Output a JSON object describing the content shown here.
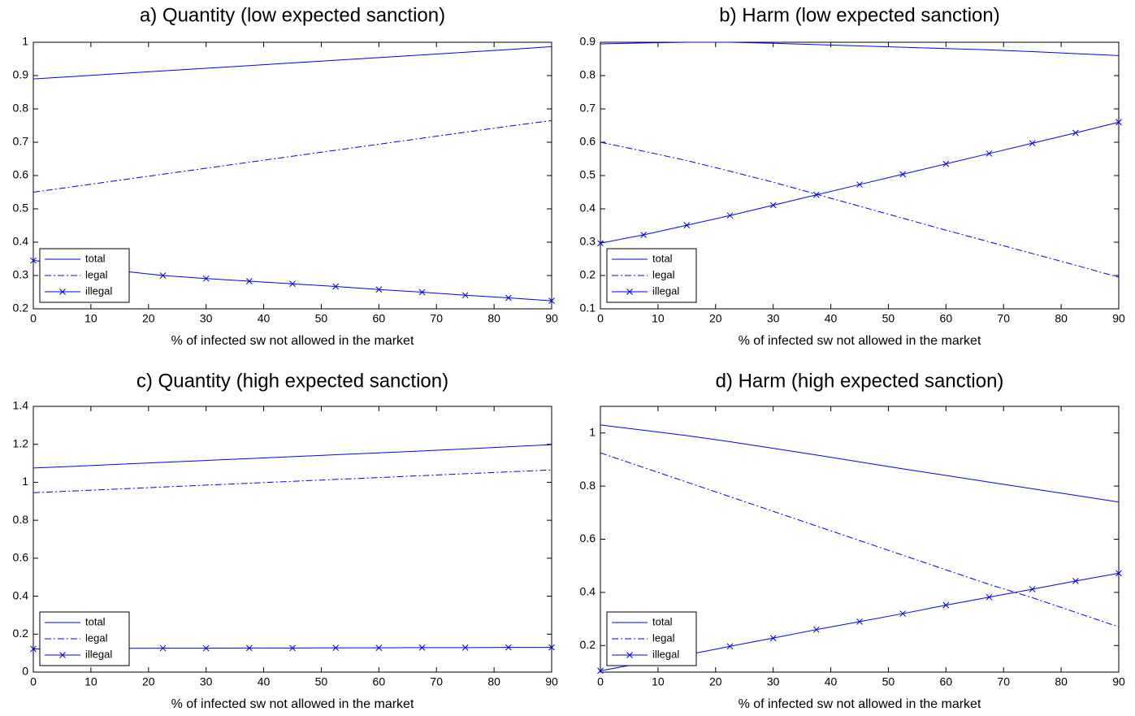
{
  "chart_data": [
    {
      "type": "line",
      "title": "a) Quantity (low expected sanction)",
      "x_label": "% of infected sw not allowed in the market",
      "x": [
        0,
        7.5,
        15,
        22.5,
        30,
        37.5,
        45,
        52.5,
        60,
        67.5,
        75,
        82.5,
        90
      ],
      "xlim": [
        0,
        90
      ],
      "xticks": [
        0,
        10,
        20,
        30,
        40,
        50,
        60,
        70,
        80,
        90
      ],
      "ylim": [
        0.2,
        1
      ],
      "yticks": [
        0.2,
        0.3,
        0.4,
        0.5,
        0.6,
        0.7,
        0.8,
        0.9,
        1
      ],
      "legend": "lower left",
      "series": [
        {
          "name": "total",
          "color": "#0000ff",
          "style": "solid",
          "values": [
            0.89,
            0.898,
            0.906,
            0.914,
            0.922,
            0.93,
            0.938,
            0.946,
            0.954,
            0.962,
            0.97,
            0.978,
            0.987
          ]
        },
        {
          "name": "legal",
          "color": "#0000ff",
          "style": "dashdot",
          "values": [
            0.55,
            0.568,
            0.586,
            0.604,
            0.622,
            0.64,
            0.658,
            0.676,
            0.694,
            0.712,
            0.73,
            0.748,
            0.765
          ]
        },
        {
          "name": "illegal",
          "color": "#0000ff",
          "style": "solid",
          "marker": "x",
          "values": [
            0.345,
            0.33,
            0.314,
            0.3,
            0.291,
            0.283,
            0.275,
            0.267,
            0.258,
            0.25,
            0.241,
            0.233,
            0.224
          ]
        }
      ]
    },
    {
      "type": "line",
      "title": "b) Harm (low expected sanction)",
      "x_label": "% of infected sw not allowed in the market",
      "x": [
        0,
        7.5,
        15,
        22.5,
        30,
        37.5,
        45,
        52.5,
        60,
        67.5,
        75,
        82.5,
        90
      ],
      "xlim": [
        0,
        90
      ],
      "xticks": [
        0,
        10,
        20,
        30,
        40,
        50,
        60,
        70,
        80,
        90
      ],
      "ylim": [
        0.1,
        0.9
      ],
      "yticks": [
        0.1,
        0.2,
        0.3,
        0.4,
        0.5,
        0.6,
        0.7,
        0.8,
        0.9
      ],
      "legend": "lower left",
      "series": [
        {
          "name": "total",
          "color": "#0000ff",
          "style": "solid",
          "values": [
            0.895,
            0.898,
            0.9,
            0.9,
            0.897,
            0.893,
            0.889,
            0.885,
            0.881,
            0.877,
            0.872,
            0.866,
            0.86
          ]
        },
        {
          "name": "legal",
          "color": "#0000ff",
          "style": "dashdot",
          "values": [
            0.6,
            0.573,
            0.545,
            0.513,
            0.48,
            0.444,
            0.408,
            0.372,
            0.336,
            0.301,
            0.266,
            0.231,
            0.195
          ]
        },
        {
          "name": "illegal",
          "color": "#0000ff",
          "style": "solid",
          "marker": "x",
          "values": [
            0.297,
            0.322,
            0.351,
            0.38,
            0.411,
            0.442,
            0.473,
            0.504,
            0.535,
            0.566,
            0.597,
            0.628,
            0.66
          ]
        }
      ]
    },
    {
      "type": "line",
      "title": "c) Quantity (high expected sanction)",
      "x_label": "% of infected sw not allowed in the market",
      "x": [
        0,
        7.5,
        15,
        22.5,
        30,
        37.5,
        45,
        52.5,
        60,
        67.5,
        75,
        82.5,
        90
      ],
      "xlim": [
        0,
        90
      ],
      "xticks": [
        0,
        10,
        20,
        30,
        40,
        50,
        60,
        70,
        80,
        90
      ],
      "ylim": [
        0,
        1.4
      ],
      "yticks": [
        0,
        0.2,
        0.4,
        0.6,
        0.8,
        1,
        1.2,
        1.4
      ],
      "legend": "lower left",
      "series": [
        {
          "name": "total",
          "color": "#0000ff",
          "style": "solid",
          "values": [
            1.075,
            1.085,
            1.095,
            1.105,
            1.115,
            1.125,
            1.135,
            1.145,
            1.155,
            1.165,
            1.176,
            1.187,
            1.198
          ]
        },
        {
          "name": "legal",
          "color": "#0000ff",
          "style": "dashdot",
          "values": [
            0.945,
            0.955,
            0.965,
            0.975,
            0.985,
            0.995,
            1.005,
            1.015,
            1.025,
            1.035,
            1.045,
            1.055,
            1.065
          ]
        },
        {
          "name": "illegal",
          "color": "#0000ff",
          "style": "solid",
          "marker": "x",
          "values": [
            0.122,
            0.124,
            0.125,
            0.126,
            0.126,
            0.127,
            0.127,
            0.128,
            0.128,
            0.129,
            0.129,
            0.13,
            0.13
          ]
        }
      ]
    },
    {
      "type": "line",
      "title": "d) Harm (high expected sanction)",
      "x_label": "% of infected sw not allowed in the market",
      "x": [
        0,
        7.5,
        15,
        22.5,
        30,
        37.5,
        45,
        52.5,
        60,
        67.5,
        75,
        82.5,
        90
      ],
      "xlim": [
        0,
        90
      ],
      "xticks": [
        0,
        10,
        20,
        30,
        40,
        50,
        60,
        70,
        80,
        90
      ],
      "ylim": [
        0.1,
        1.1
      ],
      "yticks": [
        0.2,
        0.4,
        0.6,
        0.8,
        1
      ],
      "legend": "lower left",
      "series": [
        {
          "name": "total",
          "color": "#0000ff",
          "style": "solid",
          "values": [
            1.03,
            1.01,
            0.99,
            0.967,
            0.942,
            0.917,
            0.891,
            0.865,
            0.84,
            0.815,
            0.79,
            0.765,
            0.74
          ]
        },
        {
          "name": "legal",
          "color": "#0000ff",
          "style": "dashdot",
          "values": [
            0.925,
            0.87,
            0.815,
            0.76,
            0.705,
            0.65,
            0.595,
            0.54,
            0.485,
            0.43,
            0.38,
            0.325,
            0.27
          ]
        },
        {
          "name": "illegal",
          "color": "#0000ff",
          "style": "solid",
          "marker": "x",
          "values": [
            0.105,
            0.135,
            0.165,
            0.197,
            0.228,
            0.26,
            0.29,
            0.32,
            0.352,
            0.382,
            0.412,
            0.443,
            0.472
          ]
        }
      ]
    }
  ]
}
